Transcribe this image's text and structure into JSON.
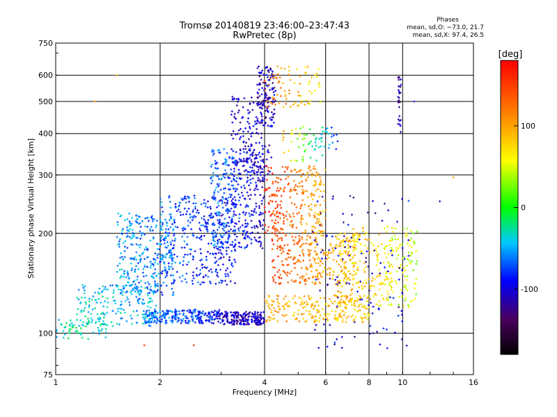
{
  "chart_data": {
    "type": "scatter",
    "title": "Tromsø 20140819 23:46:00–23:47:43",
    "subtitle": "RwPretec (8p)",
    "xlabel": "Frequency [MHz]",
    "ylabel": "Stationary phase Virtual Height [km]",
    "x_scale": "log",
    "y_scale": "log",
    "xlim": [
      1,
      16
    ],
    "ylim": [
      75,
      750
    ],
    "x_ticks": [
      1,
      2,
      4,
      6,
      8,
      10,
      16
    ],
    "y_ticks": [
      75,
      100,
      200,
      300,
      400,
      500,
      600,
      750
    ],
    "grid": true,
    "legend_position": "top-right",
    "stats": {
      "heading": "Phases",
      "line_o": "mean, sd,O: −73.0, 21.7",
      "line_x": "mean, sd,X:  97.4, 26.5"
    },
    "colorbar": {
      "unit": "[deg]",
      "range": [
        -180,
        180
      ],
      "ticks": [
        100,
        0,
        -100
      ],
      "position": "right"
    },
    "series": [
      {
        "clusters": [
          {
            "x": [
              1.0,
              1.4
            ],
            "y": [
              96,
              110
            ],
            "phase": [
              -30,
              -30
            ],
            "n": 60
          },
          {
            "x": [
              1.15,
              2.0
            ],
            "y": [
              105,
              140
            ],
            "phase": [
              -40,
              -50
            ],
            "n": 180
          },
          {
            "x": [
              1.5,
              2.2
            ],
            "y": [
              130,
              230
            ],
            "phase": [
              -50,
              -70
            ],
            "n": 320
          },
          {
            "x": [
              1.8,
              3.0
            ],
            "y": [
              107,
              118
            ],
            "phase": [
              -60,
              -90
            ],
            "n": 260
          },
          {
            "x": [
              2.0,
              3.3
            ],
            "y": [
              140,
              260
            ],
            "phase": [
              -60,
              -100
            ],
            "n": 380
          },
          {
            "x": [
              3.0,
              4.0
            ],
            "y": [
              106,
              116
            ],
            "phase": [
              -110,
              -110
            ],
            "n": 200
          },
          {
            "x": [
              2.8,
              4.0
            ],
            "y": [
              180,
              360
            ],
            "phase": [
              -60,
              -110
            ],
            "n": 420
          },
          {
            "x": [
              3.2,
              4.2
            ],
            "y": [
              300,
              520
            ],
            "phase": [
              -100,
              -110
            ],
            "n": 150
          },
          {
            "x": [
              3.8,
              4.3
            ],
            "y": [
              420,
              640
            ],
            "phase": [
              -110,
              -110
            ],
            "n": 120
          },
          {
            "x": [
              4.0,
              5.8
            ],
            "y": [
              480,
              640
            ],
            "phase": [
              130,
              60
            ],
            "n": 80
          },
          {
            "x": [
              4.0,
              6.0
            ],
            "y": [
              200,
              320
            ],
            "phase": [
              160,
              90
            ],
            "n": 260
          },
          {
            "x": [
              4.2,
              7.5
            ],
            "y": [
              140,
              200
            ],
            "phase": [
              150,
              60
            ],
            "n": 320
          },
          {
            "x": [
              4.0,
              8.0
            ],
            "y": [
              108,
              130
            ],
            "phase": [
              100,
              80
            ],
            "n": 240
          },
          {
            "x": [
              6.5,
              11.0
            ],
            "y": [
              120,
              210
            ],
            "phase": [
              100,
              40
            ],
            "n": 300
          },
          {
            "x": [
              5.5,
              10.5
            ],
            "y": [
              90,
              260
            ],
            "phase": [
              -110,
              -100
            ],
            "n": 120
          },
          {
            "x": [
              9.7,
              9.9
            ],
            "y": [
              400,
              600
            ],
            "phase": [
              -115,
              -115
            ],
            "n": 30
          },
          {
            "x": [
              4.5,
              6.5
            ],
            "y": [
              330,
              420
            ],
            "phase": [
              90,
              -90
            ],
            "n": 70
          }
        ]
      }
    ],
    "outliers": [
      {
        "x": 1.3,
        "y": 500,
        "phase": 120
      },
      {
        "x": 1.5,
        "y": 600,
        "phase": 100
      },
      {
        "x": 1.8,
        "y": 92,
        "phase": 150
      },
      {
        "x": 2.5,
        "y": 92,
        "phase": 150
      },
      {
        "x": 14,
        "y": 295,
        "phase": 100
      },
      {
        "x": 12.8,
        "y": 250,
        "phase": -110
      },
      {
        "x": 10.8,
        "y": 500,
        "phase": -100
      }
    ]
  }
}
